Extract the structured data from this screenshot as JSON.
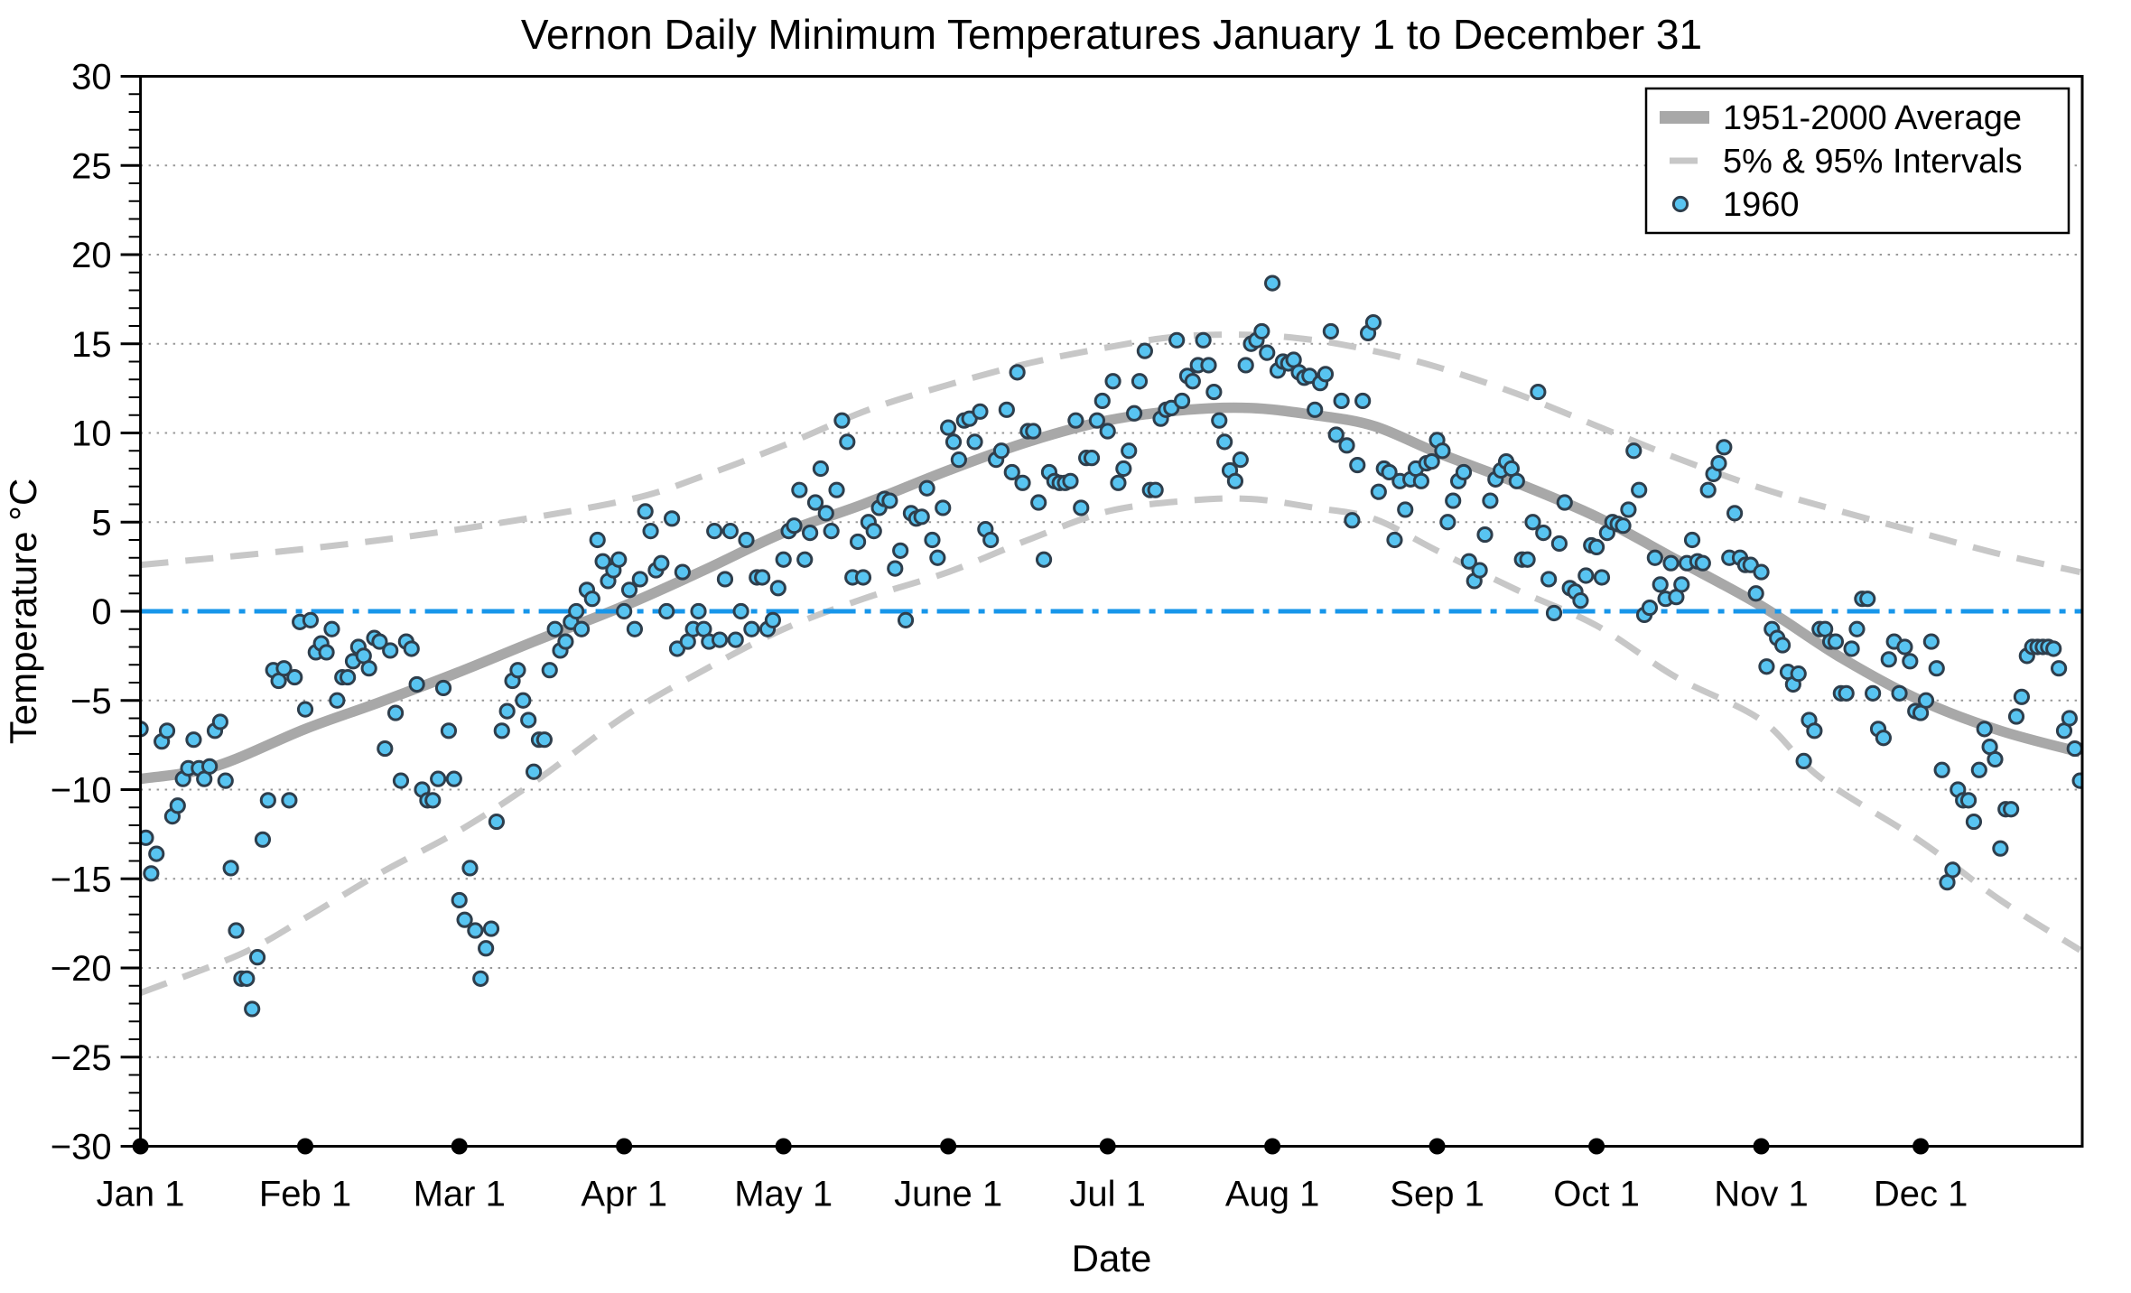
{
  "figure": {
    "background": "#ffffff"
  },
  "chart_data": {
    "type": "scatter",
    "title": "Vernon Daily Minimum Temperatures January 1 to December 31",
    "xlabel": "Date",
    "ylabel": "Temperature °C",
    "ylim": [
      -30,
      30
    ],
    "x_domain_days": [
      1,
      366
    ],
    "grid": "horizontal-dotted",
    "grid_color": "#999999",
    "frame_color": "#000000",
    "y_ticks": [
      {
        "value": -30,
        "label": "−30"
      },
      {
        "value": -25,
        "label": "−25"
      },
      {
        "value": -20,
        "label": "−20"
      },
      {
        "value": -15,
        "label": "−15"
      },
      {
        "value": -10,
        "label": "−10"
      },
      {
        "value": -5,
        "label": "−5"
      },
      {
        "value": 0,
        "label": "0"
      },
      {
        "value": 5,
        "label": "5"
      },
      {
        "value": 10,
        "label": "10"
      },
      {
        "value": 15,
        "label": "15"
      },
      {
        "value": 20,
        "label": "20"
      },
      {
        "value": 25,
        "label": "25"
      },
      {
        "value": 30,
        "label": "30"
      }
    ],
    "y_minor_tick_step": 1,
    "x_ticks": [
      {
        "label": "Jan 1",
        "day": 1
      },
      {
        "label": "Feb 1",
        "day": 32
      },
      {
        "label": "Mar 1",
        "day": 61
      },
      {
        "label": "Apr 1",
        "day": 92
      },
      {
        "label": "May 1",
        "day": 122
      },
      {
        "label": "June 1",
        "day": 153
      },
      {
        "label": "Jul 1",
        "day": 183
      },
      {
        "label": "Aug 1",
        "day": 214
      },
      {
        "label": "Sep 1",
        "day": 245
      },
      {
        "label": "Oct 1",
        "day": 275
      },
      {
        "label": "Nov 1",
        "day": 306
      },
      {
        "label": "Dec 1",
        "day": 336
      }
    ],
    "zero_reference_line": {
      "value": 0,
      "color": "#1796ea",
      "style": "dash-dot"
    },
    "legend_position": "top-right",
    "legend": [
      {
        "swatch": "thick-line",
        "label": "1951-2000 Average"
      },
      {
        "swatch": "dash",
        "label": "5% & 95% Intervals"
      },
      {
        "swatch": "circle",
        "label": "1960"
      }
    ],
    "series": [
      {
        "name": "1951-2000 Average",
        "type": "line",
        "color": "#a8a8a8",
        "width": 11.5,
        "anchors": [
          [
            1,
            -9.4
          ],
          [
            15,
            -8.7
          ],
          [
            32,
            -6.6
          ],
          [
            46,
            -5.1
          ],
          [
            61,
            -3.4
          ],
          [
            75,
            -1.7
          ],
          [
            92,
            0.3
          ],
          [
            107,
            2.3
          ],
          [
            122,
            4.4
          ],
          [
            137,
            6.0
          ],
          [
            153,
            7.9
          ],
          [
            168,
            9.5
          ],
          [
            183,
            10.7
          ],
          [
            198,
            11.3
          ],
          [
            210,
            11.4
          ],
          [
            222,
            11.0
          ],
          [
            233,
            10.4
          ],
          [
            245,
            8.9
          ],
          [
            260,
            7.2
          ],
          [
            275,
            5.3
          ],
          [
            290,
            2.9
          ],
          [
            306,
            0.3
          ],
          [
            321,
            -2.6
          ],
          [
            336,
            -5.0
          ],
          [
            351,
            -6.7
          ],
          [
            366,
            -7.9
          ]
        ]
      },
      {
        "name": "5% & 95% Intervals",
        "type": "interval-edges",
        "color": "#c7c7c7",
        "width": 7,
        "dash": [
          31,
          19
        ],
        "upper": [
          [
            1,
            2.6
          ],
          [
            32,
            3.5
          ],
          [
            61,
            4.6
          ],
          [
            92,
            6.2
          ],
          [
            107,
            7.6
          ],
          [
            122,
            9.3
          ],
          [
            138,
            11.3
          ],
          [
            153,
            12.7
          ],
          [
            168,
            13.9
          ],
          [
            183,
            14.8
          ],
          [
            196,
            15.4
          ],
          [
            210,
            15.5
          ],
          [
            222,
            15.2
          ],
          [
            233,
            14.6
          ],
          [
            245,
            13.7
          ],
          [
            260,
            12.2
          ],
          [
            275,
            10.4
          ],
          [
            290,
            8.6
          ],
          [
            306,
            6.9
          ],
          [
            321,
            5.6
          ],
          [
            336,
            4.4
          ],
          [
            351,
            3.2
          ],
          [
            366,
            2.2
          ]
        ],
        "lower": [
          [
            1,
            -21.4
          ],
          [
            20,
            -19.2
          ],
          [
            32,
            -17.2
          ],
          [
            46,
            -14.7
          ],
          [
            61,
            -12.3
          ],
          [
            75,
            -9.6
          ],
          [
            92,
            -5.9
          ],
          [
            107,
            -3.3
          ],
          [
            122,
            -1.0
          ],
          [
            137,
            0.7
          ],
          [
            153,
            2.2
          ],
          [
            168,
            4.0
          ],
          [
            183,
            5.6
          ],
          [
            198,
            6.2
          ],
          [
            210,
            6.3
          ],
          [
            222,
            5.8
          ],
          [
            233,
            5.2
          ],
          [
            245,
            3.4
          ],
          [
            260,
            1.2
          ],
          [
            275,
            -0.8
          ],
          [
            290,
            -3.7
          ],
          [
            306,
            -6.1
          ],
          [
            317,
            -9.3
          ],
          [
            336,
            -12.9
          ],
          [
            351,
            -16.2
          ],
          [
            366,
            -19.0
          ]
        ]
      },
      {
        "name": "1960",
        "type": "scatter",
        "fill": "#58c4f1",
        "edge": "#2e3e4c",
        "radius": 7.6,
        "start_day": 1,
        "values": [
          -6.6,
          -12.7,
          -14.7,
          -13.6,
          -7.3,
          -6.7,
          -11.5,
          -10.9,
          -9.4,
          -8.8,
          -7.2,
          -8.8,
          -9.4,
          -8.7,
          -6.7,
          -6.2,
          -9.5,
          -14.4,
          -17.9,
          -20.6,
          -20.6,
          -22.3,
          -19.4,
          -12.8,
          -10.6,
          -3.3,
          -3.9,
          -3.2,
          -10.6,
          -3.7,
          -0.6,
          -5.5,
          -0.5,
          -2.3,
          -1.8,
          -2.3,
          -1.0,
          -5.0,
          -3.7,
          -3.7,
          -2.8,
          -2.0,
          -2.5,
          -3.2,
          -1.5,
          -1.7,
          -7.7,
          -2.2,
          -5.7,
          -9.5,
          -1.7,
          -2.1,
          -4.1,
          -10.0,
          -10.6,
          -10.6,
          -9.4,
          -4.3,
          -6.7,
          -9.4,
          -16.2,
          -17.3,
          -14.4,
          -17.9,
          -20.6,
          -18.9,
          -17.8,
          -11.8,
          -6.7,
          -5.6,
          -3.9,
          -3.3,
          -5.0,
          -6.1,
          -9.0,
          -7.2,
          -7.2,
          -3.3,
          -1.0,
          -2.2,
          -1.7,
          -0.6,
          0.0,
          -1.0,
          1.2,
          0.7,
          4.0,
          2.8,
          1.7,
          2.3,
          2.9,
          0.0,
          1.2,
          -1.0,
          1.8,
          5.6,
          4.5,
          2.3,
          2.7,
          0.0,
          5.2,
          -2.1,
          2.2,
          -1.7,
          -1.0,
          0.0,
          -1.0,
          -1.7,
          4.5,
          -1.6,
          1.8,
          4.5,
          -1.6,
          0.0,
          4.0,
          -1.0,
          1.9,
          1.9,
          -1.0,
          -0.5,
          1.3,
          2.9,
          4.5,
          4.8,
          6.8,
          2.9,
          4.4,
          6.1,
          8.0,
          5.5,
          4.5,
          6.8,
          10.7,
          9.5,
          1.9,
          3.9,
          1.9,
          5.0,
          4.5,
          5.8,
          6.3,
          6.2,
          2.4,
          3.4,
          -0.5,
          5.5,
          5.2,
          5.3,
          6.9,
          4.0,
          3.0,
          5.8,
          10.3,
          9.5,
          8.5,
          10.7,
          10.8,
          9.5,
          11.2,
          4.6,
          4.0,
          8.5,
          9.0,
          11.3,
          7.8,
          13.4,
          7.2,
          10.1,
          10.1,
          6.1,
          2.9,
          7.8,
          7.3,
          7.2,
          7.2,
          7.3,
          10.7,
          5.8,
          8.6,
          8.6,
          10.7,
          11.8,
          10.1,
          12.9,
          7.2,
          8.0,
          9.0,
          11.1,
          12.9,
          14.6,
          6.8,
          6.8,
          10.8,
          11.3,
          11.4,
          15.2,
          11.8,
          13.2,
          12.9,
          13.8,
          15.2,
          13.8,
          12.3,
          10.7,
          9.5,
          7.9,
          7.3,
          8.5,
          13.8,
          15.0,
          15.2,
          15.7,
          14.5,
          18.4,
          13.5,
          14.0,
          13.9,
          14.1,
          13.4,
          13.1,
          13.2,
          11.3,
          12.8,
          13.3,
          15.7,
          9.9,
          11.8,
          9.3,
          5.1,
          8.2,
          11.8,
          15.6,
          16.2,
          6.7,
          8.0,
          7.8,
          4.0,
          7.3,
          5.7,
          7.4,
          8.0,
          7.3,
          8.3,
          8.4,
          9.6,
          9.0,
          5.0,
          6.2,
          7.3,
          7.8,
          2.8,
          1.7,
          2.3,
          4.3,
          6.2,
          7.4,
          7.9,
          8.4,
          8.0,
          7.3,
          2.9,
          2.9,
          5.0,
          12.3,
          4.4,
          1.8,
          -0.1,
          3.8,
          6.1,
          1.3,
          1.1,
          0.6,
          2.0,
          3.7,
          3.6,
          1.9,
          4.4,
          5.0,
          4.9,
          4.8,
          5.7,
          9.0,
          6.8,
          -0.2,
          0.2,
          3.0,
          1.5,
          0.7,
          2.7,
          0.8,
          1.5,
          2.7,
          4.0,
          2.8,
          2.7,
          6.8,
          7.7,
          8.3,
          9.2,
          3.0,
          5.5,
          3.0,
          2.6,
          2.6,
          1.0,
          2.2,
          -3.1,
          -1.0,
          -1.5,
          -1.9,
          -3.4,
          -4.1,
          -3.5,
          -8.4,
          -6.1,
          -6.7,
          -1.0,
          -1.0,
          -1.7,
          -1.7,
          -4.6,
          -4.6,
          -2.1,
          -1.0,
          0.7,
          0.7,
          -4.6,
          -6.6,
          -7.1,
          -2.7,
          -1.7,
          -4.6,
          -2.0,
          -2.8,
          -5.6,
          -5.7,
          -5.0,
          -1.7,
          -3.2,
          -8.9,
          -15.2,
          -14.5,
          -10.0,
          -10.6,
          -10.6,
          -11.8,
          -8.9,
          -6.6,
          -7.6,
          -8.3,
          -13.3,
          -11.1,
          -11.1,
          -5.9,
          -4.8,
          -2.5,
          -2.0,
          -2.0,
          -2.0,
          -2.0,
          -2.1,
          -3.2,
          -6.7,
          -6.0,
          -7.7,
          -9.5
        ]
      }
    ],
    "month_marker_dots": {
      "color": "#000000",
      "radius": 9,
      "days": [
        1,
        32,
        61,
        92,
        122,
        153,
        183,
        214,
        245,
        275,
        306,
        336
      ]
    }
  }
}
